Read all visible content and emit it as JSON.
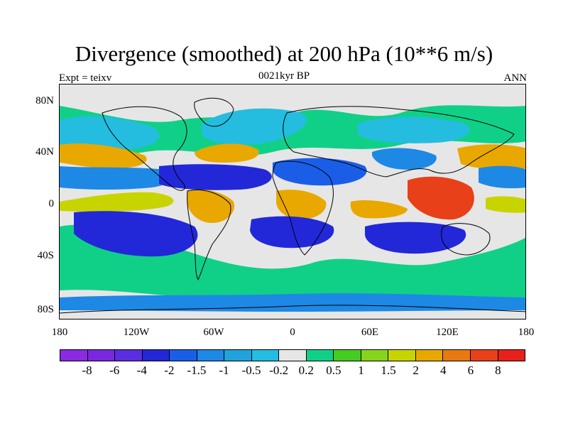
{
  "title": "Divergence (smoothed) at 200 hPa (10**6 m/s)",
  "subtitle_left": "Expt = teixv",
  "subtitle_center": "0021kyr BP",
  "subtitle_right": "ANN",
  "lat_labels": [
    "80N",
    "40N",
    "0",
    "40S",
    "80S"
  ],
  "lon_labels": [
    "180",
    "120W",
    "60W",
    "0",
    "60E",
    "120E",
    "180"
  ],
  "colorbar": {
    "labels": [
      "-8",
      "-6",
      "-4",
      "-2",
      "-1.5",
      "-1",
      "-0.5",
      "-0.2",
      "0.2",
      "0.5",
      "1",
      "1.5",
      "2",
      "4",
      "6",
      "8"
    ],
    "colors": [
      "#8a2be2",
      "#7a28e0",
      "#5a2ee0",
      "#2228d8",
      "#1a5ee8",
      "#1e88e5",
      "#20a3dc",
      "#24bde0",
      "#e6e6e6",
      "#10d088",
      "#44cc22",
      "#88d41c",
      "#c8d400",
      "#e8a800",
      "#e87810",
      "#e84018",
      "#e8201c"
    ]
  },
  "map_colors": {
    "neutral": "#e6e6e6",
    "neg_light": "#24bde0",
    "neg_mid": "#1e88e5",
    "neg_strong": "#1a5ee8",
    "neg_max": "#2228d8",
    "pos_light": "#10d088",
    "pos_mid": "#44cc22",
    "pos_yellow": "#c8d400",
    "pos_orange": "#e8a800",
    "pos_red": "#e84018",
    "coast": "#000000"
  }
}
